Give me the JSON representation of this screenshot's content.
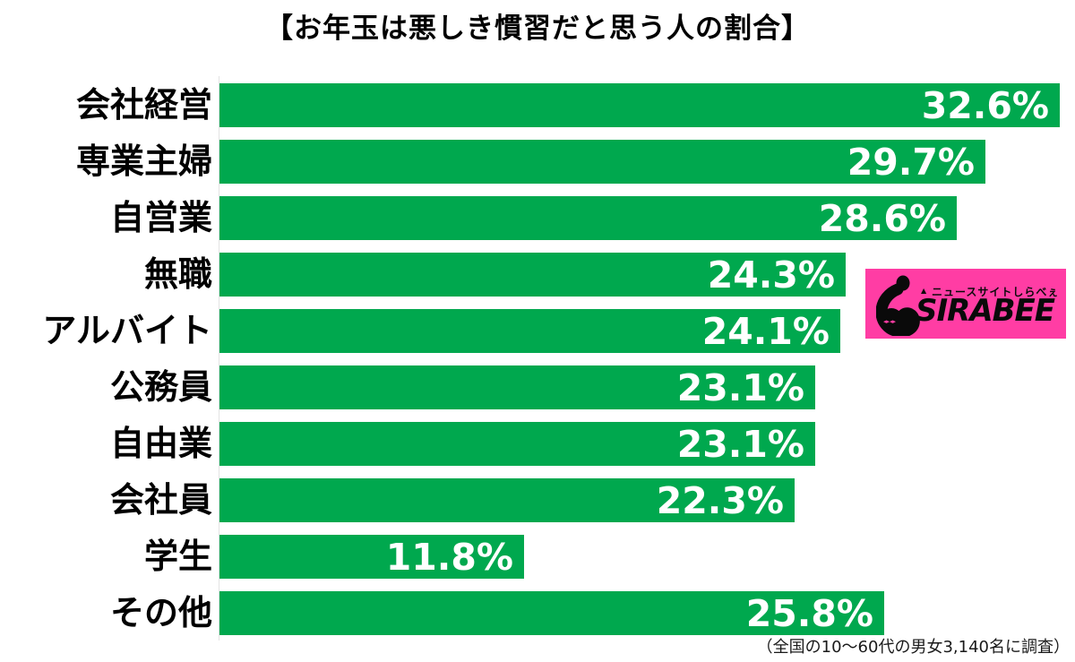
{
  "title": "【お年玉は悪しき慣習だと思う人の割合】",
  "footer": {
    "note": "（全国の10〜60代の男女3,140名に調査）"
  },
  "colors": {
    "bar_green": "#00a84e",
    "logo_pink": "#ff3da4",
    "value_text": "#ffffff",
    "label_text": "#000000",
    "axis_line": "#e3e3e3"
  },
  "chart_data": {
    "type": "bar",
    "orientation": "horizontal",
    "title": "【お年玉は悪しき慣習だと思う人の割合】",
    "categories": [
      "会社経営",
      "専業主婦",
      "自営業",
      "無職",
      "アルバイト",
      "公務員",
      "自由業",
      "会社員",
      "学生",
      "その他"
    ],
    "values": [
      32.6,
      29.7,
      28.6,
      24.3,
      24.1,
      23.1,
      23.1,
      22.3,
      11.8,
      25.8
    ],
    "value_labels": [
      "32.6%",
      "29.7%",
      "28.6%",
      "24.3%",
      "24.1%",
      "23.1%",
      "23.1%",
      "22.3%",
      "11.8%",
      "25.8%"
    ],
    "xlabel": "",
    "ylabel": "",
    "xlim": [
      0,
      32.7
    ],
    "grid": false,
    "legend": false,
    "value_label_position": "inside-right",
    "bar_color": "#00a84e",
    "annotation": "（全国の10〜60代の男女3,140名に調査）"
  },
  "logo": {
    "brand": "SIRABEE",
    "tagline": "ニュースサイトしらべぇ",
    "pointer": "▲",
    "arrows": "◂▸◂▸",
    "bg_color": "#ff3da4"
  }
}
